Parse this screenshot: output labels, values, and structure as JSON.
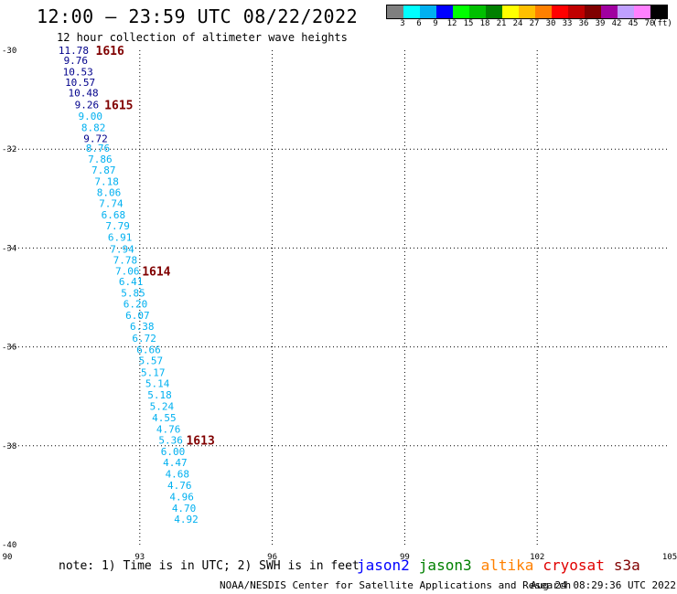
{
  "header": {
    "title": "12:00 – 23:59 UTC 08/22/2022",
    "subtitle": "12 hour collection of altimeter wave heights"
  },
  "colorbar": {
    "colors": [
      "#7f7f7f",
      "#00ffff",
      "#00b0f0",
      "#0000ff",
      "#00ff00",
      "#00c000",
      "#008000",
      "#ffff00",
      "#ffc000",
      "#ff8000",
      "#ff0000",
      "#c00000",
      "#800000",
      "#a000a0",
      "#c0a0ff",
      "#ff80ff",
      "#000000"
    ],
    "labels": [
      "3",
      "6",
      "9",
      "12",
      "15",
      "18",
      "21",
      "24",
      "27",
      "30",
      "33",
      "36",
      "39",
      "42",
      "45",
      "70"
    ],
    "unit": "(ft)"
  },
  "footer": {
    "note": "note: 1) Time is in UTC; 2) SWH is in feet",
    "missions": [
      {
        "name": "jason2",
        "color": "#0000ff"
      },
      {
        "name": "jason3",
        "color": "#008000"
      },
      {
        "name": "altika",
        "color": "#ff8000"
      },
      {
        "name": "cryosat",
        "color": "#e00000"
      },
      {
        "name": "s3a",
        "color": "#800000"
      }
    ],
    "credit": "NOAA/NESDIS Center for Satellite Applications and Research",
    "timestamp": "Aug 24 08:29:36 UTC 2022"
  },
  "chart_data": {
    "type": "scatter",
    "title": "12:00 – 23:59 UTC 08/22/2022",
    "xlim": [
      90,
      105
    ],
    "ylim": [
      -40,
      -30
    ],
    "x_ticks": [
      90,
      93,
      96,
      99,
      102,
      105
    ],
    "y_ticks": [
      -30,
      -32,
      -34,
      -36,
      -38,
      -40
    ],
    "grid": true,
    "series": [
      {
        "points": [
          {
            "x": 91.5,
            "y": -30.0,
            "v": "11.78",
            "color": "#00008b"
          },
          {
            "x": 91.55,
            "y": -30.2,
            "v": "9.76",
            "color": "#00008b"
          },
          {
            "x": 91.6,
            "y": -30.43,
            "v": "10.53",
            "color": "#00008b"
          },
          {
            "x": 91.65,
            "y": -30.65,
            "v": "10.57",
            "color": "#00008b"
          },
          {
            "x": 91.72,
            "y": -30.86,
            "v": "10.48",
            "color": "#00008b"
          },
          {
            "x": 91.8,
            "y": -31.1,
            "v": "9.26",
            "color": "#00008b"
          },
          {
            "x": 91.88,
            "y": -31.33,
            "v": "9.00",
            "color": "#00b0f0"
          },
          {
            "x": 91.95,
            "y": -31.56,
            "v": "8.82",
            "color": "#00b0f0"
          },
          {
            "x": 92.0,
            "y": -31.78,
            "v": "9.72",
            "color": "#00008b"
          },
          {
            "x": 92.05,
            "y": -31.98,
            "v": "8.76",
            "color": "#00b0f0"
          },
          {
            "x": 92.1,
            "y": -32.2,
            "v": "7.86",
            "color": "#00b0f0"
          },
          {
            "x": 92.18,
            "y": -32.42,
            "v": "7.87",
            "color": "#00b0f0"
          },
          {
            "x": 92.25,
            "y": -32.65,
            "v": "7.18",
            "color": "#00b0f0"
          },
          {
            "x": 92.3,
            "y": -32.87,
            "v": "8.06",
            "color": "#00b0f0"
          },
          {
            "x": 92.35,
            "y": -33.1,
            "v": "7.74",
            "color": "#00b0f0"
          },
          {
            "x": 92.4,
            "y": -33.33,
            "v": "6.68",
            "color": "#00b0f0"
          },
          {
            "x": 92.5,
            "y": -33.55,
            "v": "7.79",
            "color": "#00b0f0"
          },
          {
            "x": 92.55,
            "y": -33.78,
            "v": "6.91",
            "color": "#00b0f0"
          },
          {
            "x": 92.6,
            "y": -34.02,
            "v": "7.94",
            "color": "#00b0f0"
          },
          {
            "x": 92.67,
            "y": -34.24,
            "v": "7.78",
            "color": "#00b0f0"
          },
          {
            "x": 92.72,
            "y": -34.46,
            "v": "7.06",
            "color": "#00b0f0"
          },
          {
            "x": 92.8,
            "y": -34.68,
            "v": "6.41",
            "color": "#00b0f0"
          },
          {
            "x": 92.85,
            "y": -34.91,
            "v": "5.85",
            "color": "#00b0f0"
          },
          {
            "x": 92.9,
            "y": -35.13,
            "v": "6.20",
            "color": "#00b0f0"
          },
          {
            "x": 92.95,
            "y": -35.36,
            "v": "6.07",
            "color": "#00b0f0"
          },
          {
            "x": 93.05,
            "y": -35.58,
            "v": "6.38",
            "color": "#00b0f0"
          },
          {
            "x": 93.1,
            "y": -35.82,
            "v": "6.72",
            "color": "#00b0f0"
          },
          {
            "x": 93.2,
            "y": -36.05,
            "v": "6.66",
            "color": "#00b0f0"
          },
          {
            "x": 93.25,
            "y": -36.28,
            "v": "5.57",
            "color": "#00b0f0"
          },
          {
            "x": 93.3,
            "y": -36.52,
            "v": "5.17",
            "color": "#00b0f0"
          },
          {
            "x": 93.4,
            "y": -36.74,
            "v": "5.14",
            "color": "#00b0f0"
          },
          {
            "x": 93.45,
            "y": -36.97,
            "v": "5.18",
            "color": "#00b0f0"
          },
          {
            "x": 93.5,
            "y": -37.2,
            "v": "5.24",
            "color": "#00b0f0"
          },
          {
            "x": 93.55,
            "y": -37.43,
            "v": "4.55",
            "color": "#00b0f0"
          },
          {
            "x": 93.65,
            "y": -37.66,
            "v": "4.76",
            "color": "#00b0f0"
          },
          {
            "x": 93.7,
            "y": -37.88,
            "v": "5.36",
            "color": "#00b0f0"
          },
          {
            "x": 93.75,
            "y": -38.11,
            "v": "6.00",
            "color": "#00b0f0"
          },
          {
            "x": 93.8,
            "y": -38.34,
            "v": "4.47",
            "color": "#00b0f0"
          },
          {
            "x": 93.85,
            "y": -38.57,
            "v": "4.68",
            "color": "#00b0f0"
          },
          {
            "x": 93.9,
            "y": -38.8,
            "v": "4.76",
            "color": "#00b0f0"
          },
          {
            "x": 93.95,
            "y": -39.03,
            "v": "4.96",
            "color": "#00b0f0"
          },
          {
            "x": 94.0,
            "y": -39.26,
            "v": "4.70",
            "color": "#00b0f0"
          },
          {
            "x": 94.05,
            "y": -39.48,
            "v": "4.92",
            "color": "#00b0f0"
          }
        ]
      }
    ],
    "annotations": [
      {
        "text": "1616",
        "x": 92.0,
        "y": -30.0
      },
      {
        "text": "1615",
        "x": 92.2,
        "y": -31.1
      },
      {
        "text": "1614",
        "x": 93.05,
        "y": -34.46
      },
      {
        "text": "1613",
        "x": 94.05,
        "y": -37.88
      }
    ],
    "annotation_color": "#800000"
  }
}
